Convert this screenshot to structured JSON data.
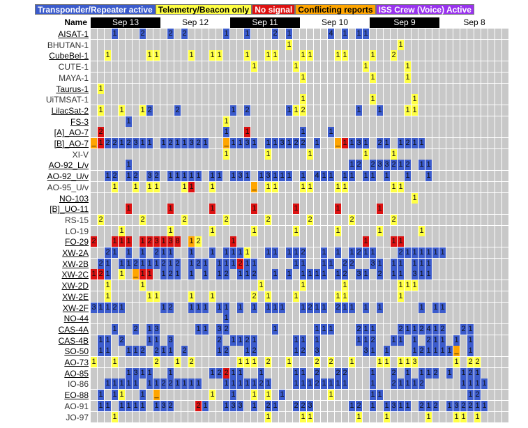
{
  "legend": [
    {
      "label": "Transponder/Repeater active",
      "bg": "#3b5bcc",
      "fg": "#ffffff"
    },
    {
      "label": "Telemetry/Beacon only",
      "bg": "#ffff44",
      "fg": "#000000"
    },
    {
      "label": "No signal",
      "bg": "#dd1111",
      "fg": "#ffffff"
    },
    {
      "label": "Conflicting reports",
      "bg": "#ffa500",
      "fg": "#000000"
    },
    {
      "label": "ISS Crew (Voice) Active",
      "bg": "#9933ee",
      "fg": "#ffffff"
    }
  ],
  "header": {
    "name_label": "Name"
  },
  "dates": [
    "Sep 13",
    "Sep 12",
    "Sep 11",
    "Sep 10",
    "Sep 9",
    "Sep 8"
  ],
  "colors": {
    "B": "#3b5bcc",
    "Y": "#ffff44",
    "R": "#dd1111",
    "O": "#ffa500",
    "P": "#9933ee",
    "empty": "#c8c8c8"
  },
  "satellites": [
    {
      "name": "AISAT-1",
      "underline": true,
      "cells": "......B1......B2......B2..B2..........B1....B1......B2..B1..........B4..B1..B1B1.."
    },
    {
      "name": "BHUTAN-1",
      "underline": false,
      "cells": "........................................................Y1..............................Y1.."
    },
    {
      "name": "CubeBel-1",
      "underline": true,
      "cells": "....Y1..........Y1Y1........Y1....Y1Y1......Y1....Y1Y1......Y1Y1......Y1Y1......Y1....Y2.."
    },
    {
      "name": "CUTE-1",
      "underline": false,
      "cells": "..............................................Y1..........Y1..................Y1..........Y1"
    },
    {
      "name": "MAYA-1",
      "underline": false,
      "cells": "............................................................Y1..................Y1........Y1"
    },
    {
      "name": "Taurus-1",
      "underline": true,
      "cells": "..Y1............................................................................................"
    },
    {
      "name": "UiTMSAT-1",
      "underline": false,
      "cells": "............................................................Y1..................Y1..........Y1"
    },
    {
      "name": "LilacSat-2",
      "underline": true,
      "cells": "..Y1....Y1....Y1B2......B2..............B1..B2..........B1Y1Y2..............B1....B1......Y1Y1"
    },
    {
      "name": "FS-3",
      "underline": true,
      "cells": "..........B1..........................Y1......................................................."
    },
    {
      "name": "[A]_AO-7",
      "underline": true,
      "cells": "..R2..................................B1....R1..............B1......B1........................"
    },
    {
      "name": "[B]_AO-7",
      "underline": true,
      "cells": "O_R1B2B2B1B2B3B1B1..B1B2B1B1B3B2B1....O_B1B1B3B1..B1B1B3B1B2B2..B1....O_R1B1B3B1..B2B1..B1B2B1B1"
    },
    {
      "name": "XI-V",
      "underline": false,
      "cells": "......................................Y1..........Y1..........Y1..............Y1......Y1........"
    },
    {
      "name": "AO-92_L/v",
      "underline": true,
      "cells": "..........B1..............................................................B1B2..B2B3B3B2B1B2..B1B1"
    },
    {
      "name": "AO-92_U/v",
      "underline": true,
      "cells": "....B1B2..B1B2..B3B2..B1B1B1B1B1..B1B1..B1B3B1..B1B3B1B1B1..B1..B4B1B1..B1B1..B1B1..B1....B1....B1"
    },
    {
      "name": "AO-95_U/v",
      "underline": false,
      "cells": "......Y1....Y1..Y1Y1......Y1R1....Y1..........O_..Y1Y1......Y1Y1......Y1Y1............Y1Y1......"
    },
    {
      "name": "NO-103",
      "underline": true,
      "cells": "............................................................................................Y1"
    },
    {
      "name": "[B]_UO-11",
      "underline": true,
      "cells": "..........R1..........R1..........R1..........R1..........R1..........R1..........R1............"
    },
    {
      "name": "RS-15",
      "underline": false,
      "cells": "..Y2..........Y2..........Y2..........Y2..........Y2..........Y2..........Y2..........Y2........"
    },
    {
      "name": "LO-19",
      "underline": false,
      "cells": "........Y1............Y1..........Y1..........Y1..........Y1..........Y1..........Y1..........Y1"
    },
    {
      "name": "FO-29",
      "underline": true,
      "cells": "R2....R1R1R1..R1R2R3R1R3R8..O1Y2........R1....................................R1......R1R1......"
    },
    {
      "name": "XW-2A",
      "underline": true,
      "cells": "....B2B1..B1..B1..B2B1B1....B1....B1..B1B1B1Y1....B1B1..B1B1B2....B1..B1..B1B2B1B1......B2B1B1B1B1B1B1"
    },
    {
      "name": "XW-2B",
      "underline": true,
      "cells": "..B2B1..B1B1B2B1B1B1B2B1B2..B1B2B1..B1B1B1R2B1B1..........B1B1....B1B1..B2B2....B3B1..B1B1..B1B1B1"
    },
    {
      "name": "XW-2C",
      "underline": true,
      "cells": "R1R2B1..Y1..O_R1R1..B1B2B1..B1..B1..B1B2..B1B1B2....B1..B1..B1B1B1B1..B1B2..B3B1..B2..B1B1..B3B1B1"
    },
    {
      "name": "XW-2D",
      "underline": true,
      "cells": "....Y1........Y1................................Y1..........Y1..........Y1..............Y1Y1Y1.."
    },
    {
      "name": "XW-2E",
      "underline": true,
      "cells": "....Y1..........Y1Y1........Y1....Y1..........Y2..Y1......Y1..........Y1Y1..............Y1......"
    },
    {
      "name": "XW-2F",
      "underline": true,
      "cells": "B3B1B1B2B1..........B1B2....B1B1B1..B1B1..B1..B1..B1B1B1....B1B2B1B1..B2B1B1..B1..B1..........B1..B1B1"
    },
    {
      "name": "NO-44",
      "underline": true,
      "cells": "......................................B1......................................................"
    },
    {
      "name": "CAS-4A",
      "underline": true,
      "cells": "......B1....B2..B1B3..........B1B1..B3B2............B1..........B1B1B1......B2B1B1......B2B1B1B2B4B1B2....B2B1"
    },
    {
      "name": "CAS-4B",
      "underline": true,
      "cells": "..B1B1..B2......B1B1..B3............B2..B1B1B2B1..........B1B1..B1..........B1B1B2....B1B1..B1..B2B1B1..B1..B1"
    },
    {
      "name": "SO-50",
      "underline": true,
      "cells": "..B1B1....B1B1B2..B2B1B1..B2........B1B2....B1B2..........B1B2..B3............B3B1..B1......B1B2B1B1B1B1O_..B1"
    },
    {
      "name": "AO-73",
      "underline": true,
      "cells": "Y1....Y1..........Y2....Y1..Y2............Y1Y1Y1..Y2....Y1......Y2..Y2....Y1......Y1Y1..Y1Y1Y3..........Y1..Y2Y2.."
    },
    {
      "name": "AO-85",
      "underline": true,
      "cells": "..........B1B3B1B1....B1..........B1B2R2B1B1....B1........B1B1..B2....B2B2......B1....B2..B1..B1B1B2..B1..B1B2B1"
    },
    {
      "name": "IO-86",
      "underline": false,
      "cells": "....B1B1B1B1B1..B1B1B2B2B1B1B1B1......B1B1B1B1B1B2B1......B1B1B1B2B1B1B1B1......B1....B2B1B1B1B2..........B1B1B1B1"
    },
    {
      "name": "EO-88",
      "underline": true,
      "cells": "..B1..B1Y1....B1..O_..............Y1....B1....Y1..Y1..B1............Y1..........B1B1........................B1B2"
    },
    {
      "name": "AO-91",
      "underline": false,
      "cells": "..B1B1..B1B1B1B1..B1B3B2......R2B1....B1B3B3..B1..B2B1....B2B2B3..........B1B2..B1..B1B3B1B1..B2B1B2..B1B3B2B2B1B1"
    },
    {
      "name": "JO-97",
      "underline": false,
      "cells": "......Y1..........................................Y1........Y1Y1............Y1......Y1..........Y1......Y1Y1..Y1"
    }
  ]
}
